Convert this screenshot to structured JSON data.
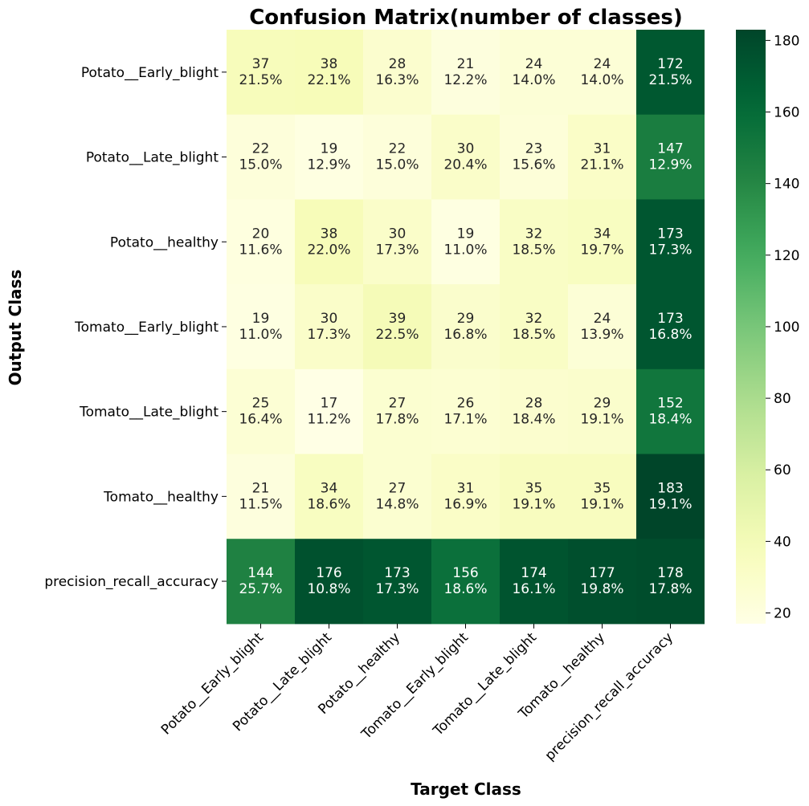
{
  "chart_data": {
    "type": "heatmap",
    "title": "Confusion Matrix(number of classes)",
    "xlabel": "Target Class",
    "ylabel": "Output Class",
    "row_labels": [
      "Potato__Early_blight",
      "Potato__Late_blight",
      "Potato__healthy",
      "Tomato__Early_blight",
      "Tomato__Late_blight",
      "Tomato__healthy",
      "precision_recall_accuracy"
    ],
    "col_labels": [
      "Potato__Early_blight",
      "Potato__Late_blight",
      "Potato__healthy",
      "Tomato__Early_blight",
      "Tomato__Late_blight",
      "Tomato__healthy",
      "precision_recall_accuracy"
    ],
    "values": [
      [
        37,
        38,
        28,
        21,
        24,
        24,
        172
      ],
      [
        22,
        19,
        22,
        30,
        23,
        31,
        147
      ],
      [
        20,
        38,
        30,
        19,
        32,
        34,
        173
      ],
      [
        19,
        30,
        39,
        29,
        32,
        24,
        173
      ],
      [
        25,
        17,
        27,
        26,
        28,
        29,
        152
      ],
      [
        21,
        34,
        27,
        31,
        35,
        35,
        183
      ],
      [
        144,
        176,
        173,
        156,
        174,
        177,
        178
      ]
    ],
    "percentages": [
      [
        "21.5%",
        "22.1%",
        "16.3%",
        "12.2%",
        "14.0%",
        "14.0%",
        "21.5%"
      ],
      [
        "15.0%",
        "12.9%",
        "15.0%",
        "20.4%",
        "15.6%",
        "21.1%",
        "12.9%"
      ],
      [
        "11.6%",
        "22.0%",
        "17.3%",
        "11.0%",
        "18.5%",
        "19.7%",
        "17.3%"
      ],
      [
        "11.0%",
        "17.3%",
        "22.5%",
        "16.8%",
        "18.5%",
        "13.9%",
        "16.8%"
      ],
      [
        "16.4%",
        "11.2%",
        "17.8%",
        "17.1%",
        "18.4%",
        "19.1%",
        "18.4%"
      ],
      [
        "11.5%",
        "18.6%",
        "14.8%",
        "16.9%",
        "19.1%",
        "19.1%",
        "19.1%"
      ],
      [
        "25.7%",
        "10.8%",
        "17.3%",
        "18.6%",
        "16.1%",
        "19.8%",
        "17.8%"
      ]
    ],
    "colormap": "YlGn",
    "vmin": 17,
    "vmax": 183,
    "colorbar_ticks": [
      20,
      40,
      60,
      80,
      100,
      120,
      140,
      160,
      180
    ]
  }
}
